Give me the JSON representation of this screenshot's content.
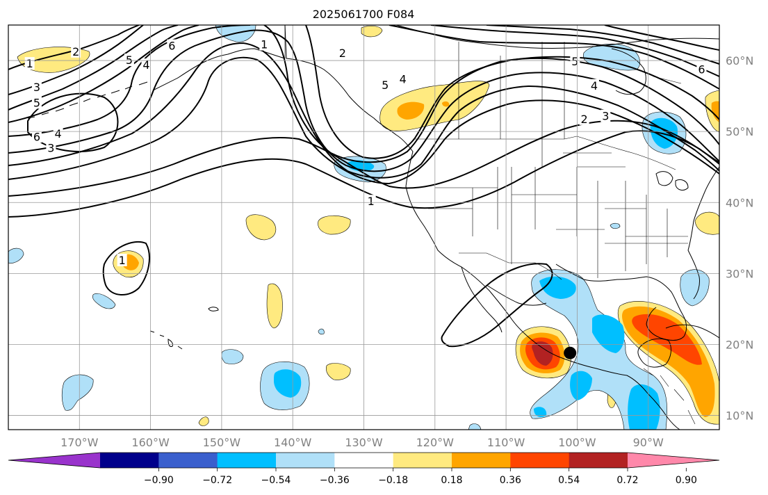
{
  "title": "2025061700 F084",
  "map": {
    "projection": "equirectangular",
    "lon_range": [
      -180,
      -80
    ],
    "lat_range": [
      8,
      65
    ],
    "lon_ticks": [
      {
        "lon": -170,
        "label": "170°W"
      },
      {
        "lon": -160,
        "label": "160°W"
      },
      {
        "lon": -150,
        "label": "150°W"
      },
      {
        "lon": -140,
        "label": "140°W"
      },
      {
        "lon": -130,
        "label": "130°W"
      },
      {
        "lon": -120,
        "label": "120°W"
      },
      {
        "lon": -110,
        "label": "110°W"
      },
      {
        "lon": -100,
        "label": "100°W"
      },
      {
        "lon": -90,
        "label": "90°W"
      }
    ],
    "lat_ticks": [
      {
        "lat": 60,
        "label": "60°N"
      },
      {
        "lat": 50,
        "label": "50°N"
      },
      {
        "lat": 40,
        "label": "40°N"
      },
      {
        "lat": 30,
        "label": "30°N"
      },
      {
        "lat": 20,
        "label": "20°N"
      },
      {
        "lat": 10,
        "label": "10°N"
      }
    ],
    "grid": true,
    "marker": {
      "lon": -101.0,
      "lat": 18.8,
      "color": "#000000"
    }
  },
  "colorbar": {
    "labels": [
      "−0.90",
      "−0.72",
      "−0.54",
      "−0.36",
      "−0.18",
      "0.18",
      "0.36",
      "0.54",
      "0.72",
      "0.90"
    ],
    "colors": [
      "#9933cc",
      "#00008b",
      "#3a5fcd",
      "#00bfff",
      "#b0e0f8",
      "#ffffff",
      "#ffea80",
      "#ffa500",
      "#ff4500",
      "#b22222",
      "#ff88aa"
    ],
    "extend": "both"
  },
  "contour_labels": [
    {
      "text": "1",
      "lon": -177.0,
      "lat": 59.5
    },
    {
      "text": "2",
      "lon": -170.5,
      "lat": 61.2
    },
    {
      "text": "3",
      "lon": -176.0,
      "lat": 56.2
    },
    {
      "text": "5",
      "lon": -176.0,
      "lat": 54.0
    },
    {
      "text": "6",
      "lon": -176.0,
      "lat": 49.2
    },
    {
      "text": "4",
      "lon": -173.0,
      "lat": 49.6
    },
    {
      "text": "3",
      "lon": -174.0,
      "lat": 47.6
    },
    {
      "text": "5",
      "lon": -163.0,
      "lat": 60.0
    },
    {
      "text": "4",
      "lon": -160.6,
      "lat": 59.3
    },
    {
      "text": "6",
      "lon": -157.0,
      "lat": 62.0
    },
    {
      "text": "1",
      "lon": -144.0,
      "lat": 62.2
    },
    {
      "text": "2",
      "lon": -133.0,
      "lat": 61.0
    },
    {
      "text": "5",
      "lon": -127.0,
      "lat": 56.5
    },
    {
      "text": "4",
      "lon": -124.5,
      "lat": 57.3
    },
    {
      "text": "1",
      "lon": -129.0,
      "lat": 40.1
    },
    {
      "text": "5",
      "lon": -100.3,
      "lat": 59.8
    },
    {
      "text": "4",
      "lon": -97.6,
      "lat": 56.4
    },
    {
      "text": "2",
      "lon": -99.0,
      "lat": 51.7
    },
    {
      "text": "3",
      "lon": -96.0,
      "lat": 52.1
    },
    {
      "text": "6",
      "lon": -82.5,
      "lat": 58.7
    },
    {
      "text": "1",
      "lon": -164.0,
      "lat": 31.8
    }
  ]
}
